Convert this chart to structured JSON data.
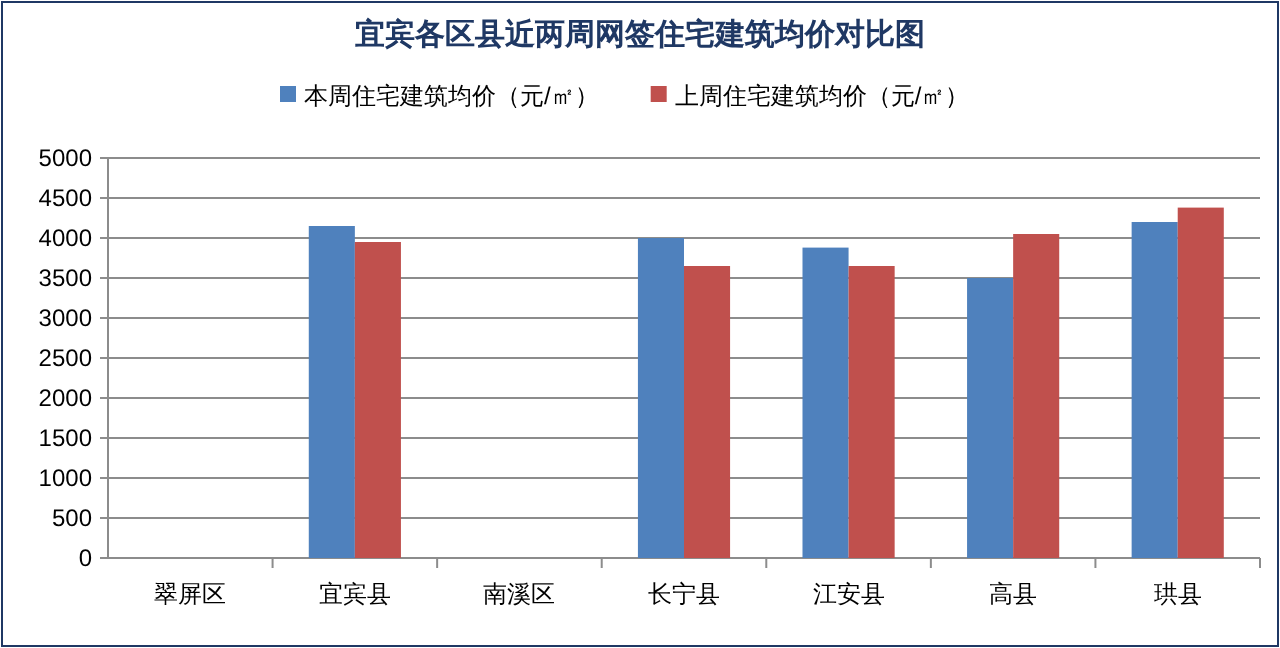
{
  "chart_data": {
    "type": "bar",
    "title": "宜宾各区县近两周网签住宅建筑均价对比图",
    "categories": [
      "翠屏区",
      "宜宾县",
      "南溪区",
      "长宁县",
      "江安县",
      "高县",
      "珙县"
    ],
    "series": [
      {
        "name": "本周住宅建筑均价（元/㎡）",
        "color": "#4f81bd",
        "values": [
          null,
          4150,
          null,
          4000,
          3880,
          3500,
          4200
        ]
      },
      {
        "name": "上周住宅建筑均价（元/㎡）",
        "color": "#c0504d",
        "values": [
          null,
          3950,
          null,
          3650,
          3650,
          4050,
          4380
        ]
      }
    ],
    "ylim": [
      0,
      5000
    ],
    "yticks": [
      0,
      500,
      1000,
      1500,
      2000,
      2500,
      3000,
      3500,
      4000,
      4500,
      5000
    ],
    "grid": "y",
    "legend": "top"
  }
}
